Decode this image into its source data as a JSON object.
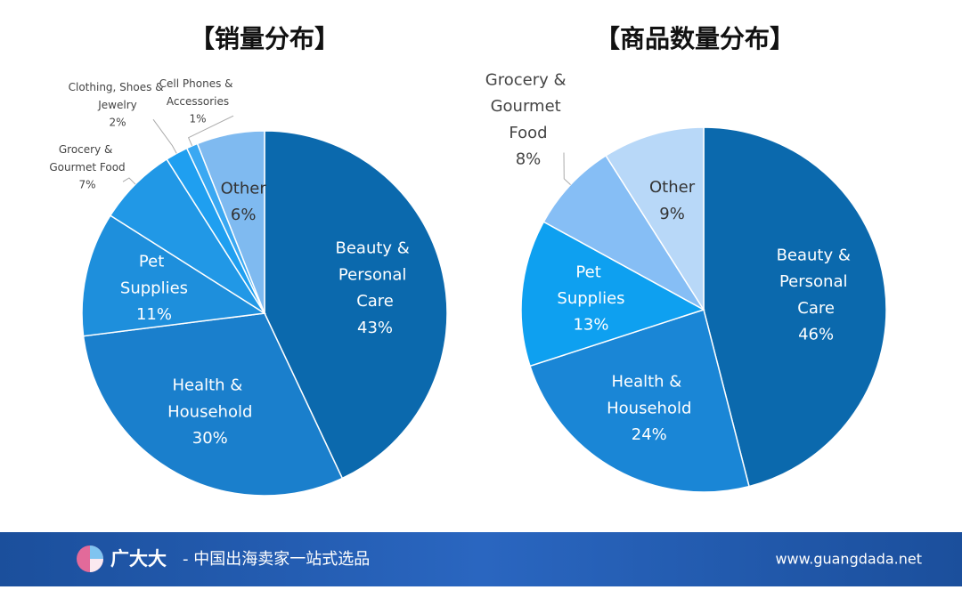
{
  "chart_data": [
    {
      "type": "pie",
      "title": "【销量分布】",
      "categories": [
        "Beauty & Personal Care",
        "Health & Household",
        "Pet Supplies",
        "Grocery & Gourmet Food",
        "Clothing, Shoes & Jewelry",
        "Cell Phones & Accessories",
        "Other"
      ],
      "values": [
        43,
        30,
        11,
        7,
        2,
        1,
        6
      ],
      "value_labels": [
        "43%",
        "30%",
        "11%",
        "7%",
        "2%",
        "1%",
        "6%"
      ],
      "colors": [
        "#0b69ad",
        "#1a7fcc",
        "#1e8fdc",
        "#2198e6",
        "#1f9ff0",
        "#3aa8f2",
        "#7fbaf0"
      ]
    },
    {
      "type": "pie",
      "title": "【商品数量分布】",
      "categories": [
        "Beauty & Personal Care",
        "Health & Household",
        "Pet Supplies",
        "Grocery & Gourmet Food",
        "Other"
      ],
      "values": [
        46,
        24,
        13,
        8,
        9
      ],
      "value_labels": [
        "46%",
        "24%",
        "13%",
        "8%",
        "9%"
      ],
      "colors": [
        "#0b69ad",
        "#1a86d6",
        "#0ea0f0",
        "#86bef5",
        "#b8d8f8"
      ]
    }
  ],
  "footer": {
    "brand": "广大大",
    "slogan": "- 中国出海卖家一站式选品",
    "url": "www.guangdada.net"
  }
}
